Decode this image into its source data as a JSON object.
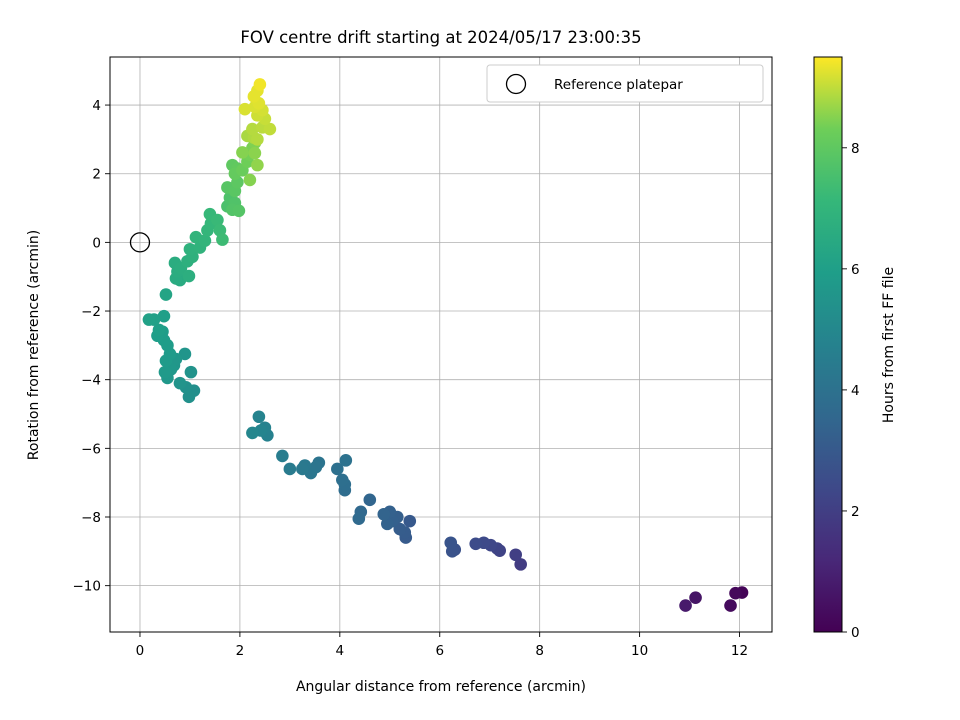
{
  "chart_data": {
    "type": "scatter",
    "title": "FOV centre drift starting at 2024/05/17 23:00:35",
    "xlabel": "Angular distance from reference (arcmin)",
    "ylabel": "Rotation from reference (arcmin)",
    "xlim": [
      -0.6,
      12.65
    ],
    "ylim": [
      -11.35,
      5.4
    ],
    "xticks": [
      0,
      2,
      4,
      6,
      8,
      10,
      12
    ],
    "yticks": [
      -10,
      -8,
      -6,
      -4,
      -2,
      0,
      2,
      4
    ],
    "xtick_labels": [
      "0",
      "2",
      "4",
      "6",
      "8",
      "10",
      "12"
    ],
    "ytick_labels": [
      "−10",
      "−8",
      "−6",
      "−4",
      "−2",
      "0",
      "2",
      "4"
    ],
    "grid": true,
    "legend": {
      "position": "top-right",
      "entries": [
        "Reference platepar"
      ]
    },
    "reference_point": {
      "name": "Reference platepar",
      "x": 0,
      "y": 0
    },
    "colorbar": {
      "label": "Hours from first FF file",
      "range": [
        0,
        9.5
      ],
      "ticks": [
        0,
        2,
        4,
        6,
        8
      ],
      "tick_labels": [
        "0",
        "2",
        "4",
        "6",
        "8"
      ],
      "colormap": "viridis"
    },
    "points": [
      [
        12.05,
        -10.2,
        0.1
      ],
      [
        11.92,
        -10.22,
        0.2
      ],
      [
        11.82,
        -10.58,
        0.3
      ],
      [
        11.12,
        -10.35,
        0.6
      ],
      [
        10.92,
        -10.58,
        0.75
      ],
      [
        7.62,
        -9.38,
        1.9
      ],
      [
        7.52,
        -9.1,
        2.0
      ],
      [
        7.2,
        -8.98,
        2.15
      ],
      [
        7.15,
        -8.92,
        2.2
      ],
      [
        7.02,
        -8.82,
        2.3
      ],
      [
        6.88,
        -8.75,
        2.4
      ],
      [
        6.72,
        -8.78,
        2.5
      ],
      [
        6.3,
        -8.95,
        2.7
      ],
      [
        6.25,
        -9.0,
        2.75
      ],
      [
        6.22,
        -8.75,
        2.8
      ],
      [
        5.4,
        -8.12,
        3.0
      ],
      [
        5.32,
        -8.6,
        3.05
      ],
      [
        5.3,
        -8.45,
        3.1
      ],
      [
        5.2,
        -8.35,
        3.15
      ],
      [
        5.15,
        -8.0,
        3.2
      ],
      [
        5.05,
        -8.12,
        3.25
      ],
      [
        5.0,
        -7.85,
        3.3
      ],
      [
        4.95,
        -8.2,
        3.35
      ],
      [
        4.88,
        -7.92,
        3.4
      ],
      [
        4.6,
        -7.5,
        3.5
      ],
      [
        4.42,
        -7.85,
        3.6
      ],
      [
        4.38,
        -8.05,
        3.65
      ],
      [
        4.1,
        -7.22,
        3.8
      ],
      [
        4.1,
        -7.05,
        3.85
      ],
      [
        4.05,
        -6.92,
        3.9
      ],
      [
        3.95,
        -6.6,
        3.95
      ],
      [
        4.12,
        -6.35,
        4.0
      ],
      [
        3.58,
        -6.42,
        4.1
      ],
      [
        3.52,
        -6.55,
        4.15
      ],
      [
        3.42,
        -6.72,
        4.2
      ],
      [
        3.3,
        -6.5,
        4.3
      ],
      [
        3.25,
        -6.6,
        4.35
      ],
      [
        3.0,
        -6.6,
        4.45
      ],
      [
        2.85,
        -6.22,
        4.5
      ],
      [
        2.55,
        -5.62,
        4.7
      ],
      [
        2.5,
        -5.4,
        4.75
      ],
      [
        2.38,
        -5.08,
        4.8
      ],
      [
        2.42,
        -5.48,
        4.85
      ],
      [
        2.25,
        -5.55,
        4.9
      ],
      [
        1.08,
        -4.32,
        5.3
      ],
      [
        0.98,
        -4.5,
        5.35
      ],
      [
        0.92,
        -4.22,
        5.4
      ],
      [
        1.02,
        -3.78,
        5.45
      ],
      [
        0.8,
        -4.1,
        5.5
      ],
      [
        0.9,
        -3.25,
        5.55
      ],
      [
        0.68,
        -3.58,
        5.6
      ],
      [
        0.72,
        -3.4,
        5.65
      ],
      [
        0.62,
        -3.7,
        5.7
      ],
      [
        0.55,
        -3.95,
        5.7
      ],
      [
        0.5,
        -3.78,
        5.75
      ],
      [
        0.52,
        -3.45,
        5.8
      ],
      [
        0.6,
        -3.25,
        5.8
      ],
      [
        0.55,
        -3.0,
        5.85
      ],
      [
        0.48,
        -2.85,
        5.9
      ],
      [
        0.45,
        -2.6,
        5.9
      ],
      [
        0.35,
        -2.72,
        5.95
      ],
      [
        0.38,
        -2.55,
        6.0
      ],
      [
        0.48,
        -2.15,
        6.0
      ],
      [
        0.28,
        -2.25,
        6.05
      ],
      [
        0.18,
        -2.25,
        6.1
      ],
      [
        0.52,
        -1.52,
        6.2
      ],
      [
        0.8,
        -1.1,
        6.5
      ],
      [
        0.72,
        -1.05,
        6.55
      ],
      [
        0.75,
        -0.85,
        6.6
      ],
      [
        0.7,
        -0.6,
        6.6
      ],
      [
        0.82,
        -0.75,
        6.65
      ],
      [
        0.98,
        -0.98,
        6.7
      ],
      [
        0.95,
        -0.55,
        6.75
      ],
      [
        1.05,
        -0.42,
        6.8
      ],
      [
        1.0,
        -0.2,
        6.85
      ],
      [
        1.2,
        -0.15,
        6.9
      ],
      [
        1.12,
        0.15,
        6.95
      ],
      [
        1.3,
        0.05,
        7.0
      ],
      [
        1.35,
        0.35,
        7.05
      ],
      [
        1.42,
        0.55,
        7.1
      ],
      [
        1.4,
        0.82,
        7.15
      ],
      [
        1.55,
        0.65,
        7.2
      ],
      [
        1.6,
        0.35,
        7.25
      ],
      [
        1.65,
        0.08,
        7.3
      ],
      [
        1.75,
        1.05,
        7.6
      ],
      [
        1.8,
        1.3,
        7.65
      ],
      [
        1.9,
        1.15,
        7.7
      ],
      [
        1.85,
        0.95,
        7.75
      ],
      [
        1.98,
        0.92,
        7.8
      ],
      [
        1.75,
        1.6,
        7.85
      ],
      [
        1.9,
        1.5,
        7.9
      ],
      [
        1.95,
        1.75,
        7.95
      ],
      [
        1.85,
        2.25,
        8.0
      ],
      [
        1.95,
        2.15,
        8.05
      ],
      [
        1.9,
        2.0,
        8.1
      ],
      [
        2.05,
        2.1,
        8.2
      ],
      [
        2.15,
        2.35,
        8.3
      ],
      [
        2.2,
        2.55,
        8.35
      ],
      [
        2.25,
        2.75,
        8.4
      ],
      [
        2.3,
        2.9,
        8.45
      ],
      [
        2.05,
        2.62,
        8.5
      ],
      [
        2.2,
        1.82,
        8.5
      ],
      [
        2.3,
        2.6,
        8.55
      ],
      [
        2.35,
        2.25,
        8.6
      ],
      [
        2.15,
        3.1,
        8.8
      ],
      [
        2.28,
        3.05,
        8.85
      ],
      [
        2.35,
        3.0,
        8.9
      ],
      [
        2.25,
        3.3,
        8.9
      ],
      [
        2.45,
        3.35,
        8.95
      ],
      [
        2.6,
        3.3,
        9.0
      ],
      [
        2.5,
        3.6,
        9.05
      ],
      [
        2.35,
        3.7,
        9.1
      ],
      [
        2.45,
        3.85,
        9.15
      ],
      [
        2.3,
        3.95,
        9.2
      ],
      [
        2.1,
        3.88,
        9.2
      ],
      [
        2.38,
        4.05,
        9.25
      ],
      [
        2.28,
        4.25,
        9.3
      ],
      [
        2.35,
        4.42,
        9.3
      ],
      [
        2.4,
        4.6,
        9.4
      ]
    ]
  }
}
